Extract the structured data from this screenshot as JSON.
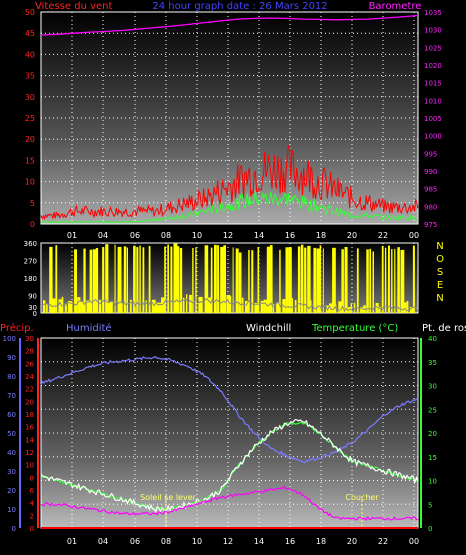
{
  "chart_data": [
    {
      "type": "line",
      "title": "24 hour graph date : 26 Mars 2012",
      "left_axis_label": "Vitesse du vent",
      "right_axis_label": "Barometre",
      "x_ticks": [
        "01",
        "04",
        "06",
        "08",
        "10",
        "12",
        "14",
        "16",
        "18",
        "20",
        "22",
        "00"
      ],
      "left_ticks": [
        0,
        5,
        10,
        15,
        20,
        25,
        30,
        35,
        40,
        45,
        50
      ],
      "left_range": [
        0,
        50
      ],
      "right_ticks": [
        975,
        980,
        985,
        990,
        995,
        1000,
        1005,
        1010,
        1015,
        1020,
        1025,
        1030,
        1035
      ],
      "right_range": [
        975,
        1035
      ],
      "grid": true,
      "series": [
        {
          "key": "gust",
          "color": "#ff0000",
          "values": [
            2,
            2,
            3,
            3,
            3,
            3,
            3,
            3,
            4,
            5,
            6,
            8,
            10,
            12,
            13,
            13,
            12,
            10,
            8,
            6,
            5,
            4,
            4,
            4
          ]
        },
        {
          "key": "wind",
          "color": "#33ff33",
          "values": [
            0.5,
            0.5,
            0.5,
            0.5,
            0.5,
            0.5,
            0.5,
            1,
            1.5,
            2,
            3,
            4,
            5,
            6,
            6,
            6,
            5,
            4,
            3,
            2,
            2,
            1.5,
            1.5,
            1.5
          ]
        },
        {
          "key": "pressure",
          "color": "#ff00ff",
          "values": [
            1028.5,
            1028.7,
            1029,
            1029.3,
            1029.5,
            1029.8,
            1030.2,
            1030.6,
            1031,
            1031.5,
            1032,
            1032.5,
            1033,
            1033.2,
            1033.3,
            1033.2,
            1033,
            1032.9,
            1032.8,
            1032.9,
            1033,
            1033.3,
            1033.6,
            1034
          ]
        }
      ]
    },
    {
      "type": "bar",
      "direction_labels": [
        "N",
        "O",
        "S",
        "E",
        "N"
      ],
      "left_ticks": [
        0,
        30,
        90,
        180,
        270,
        360
      ],
      "range": [
        0,
        360
      ],
      "x_ticks": [
        "01",
        "04",
        "06",
        "08",
        "10",
        "12",
        "14",
        "16",
        "18",
        "20",
        "22",
        "00"
      ],
      "series": [
        {
          "key": "direction",
          "color": "#ffff00",
          "values": [
            340,
            345,
            330,
            320,
            350,
            340,
            345,
            335,
            350,
            330,
            340,
            345,
            320,
            335,
            340,
            330,
            345,
            340,
            335,
            330,
            320,
            340,
            330,
            340
          ]
        },
        {
          "key": "direction_avg",
          "color": "#888888",
          "values": [
            40,
            45,
            50,
            60,
            55,
            50,
            45,
            50,
            55,
            60,
            65,
            60,
            55,
            50,
            45,
            40,
            35,
            30,
            25,
            20,
            25,
            30,
            25,
            20
          ]
        }
      ]
    },
    {
      "type": "line",
      "labels": {
        "precip": "Précip.",
        "humidity": "Humidité",
        "windchill": "Windchill",
        "temperature": "Temperature (°C)",
        "dewpoint": "Pt. de rosée"
      },
      "annotations": {
        "sunrise": "Soleil se lever",
        "sunset": "Coucher"
      },
      "humidity_ticks": [
        0,
        10,
        20,
        30,
        40,
        50,
        60,
        70,
        80,
        90,
        100
      ],
      "precip_ticks": [
        0,
        2,
        4,
        6,
        8,
        10,
        12,
        14,
        16,
        18,
        20,
        22,
        24,
        26,
        28,
        30
      ],
      "temp_ticks": [
        0,
        5,
        10,
        15,
        20,
        25,
        30,
        35,
        40
      ],
      "x_ticks": [
        "01",
        "04",
        "06",
        "08",
        "10",
        "12",
        "14",
        "16",
        "18",
        "20",
        "22",
        "00"
      ],
      "series": [
        {
          "key": "humidity",
          "color": "#7b7bff",
          "values": [
            76,
            79,
            82,
            85,
            87,
            88,
            89,
            90,
            88,
            85,
            80,
            72,
            60,
            50,
            42,
            38,
            35,
            37,
            40,
            45,
            52,
            60,
            65,
            68
          ]
        },
        {
          "key": "temperature",
          "color": "#33ff33",
          "values": [
            11,
            10,
            9,
            8,
            7,
            6,
            5,
            4,
            4,
            5,
            6,
            8,
            13,
            17,
            20,
            22,
            22,
            20,
            17,
            14,
            13,
            12,
            11,
            10
          ]
        },
        {
          "key": "windchill",
          "color": "#ffffff",
          "values": [
            11,
            10,
            9,
            8,
            7,
            6,
            5,
            4,
            4,
            5,
            6,
            8,
            13,
            17,
            20,
            22,
            22.5,
            20,
            17,
            14,
            13,
            12,
            11,
            10
          ]
        },
        {
          "key": "dewpoint",
          "color": "#ff00ff",
          "values": [
            5,
            5,
            4.5,
            4,
            3.5,
            3,
            3,
            3,
            3.5,
            4.5,
            5.5,
            6.5,
            7,
            7.5,
            8,
            8.5,
            7,
            4,
            2,
            2,
            2,
            2,
            2,
            2
          ]
        },
        {
          "key": "precip",
          "color": "#ff0000",
          "values": [
            0,
            0,
            0,
            0,
            0,
            0,
            0,
            0,
            0,
            0,
            0,
            0,
            0,
            0,
            0,
            0,
            0,
            0,
            0,
            0,
            0,
            0,
            0,
            0
          ]
        }
      ]
    }
  ]
}
